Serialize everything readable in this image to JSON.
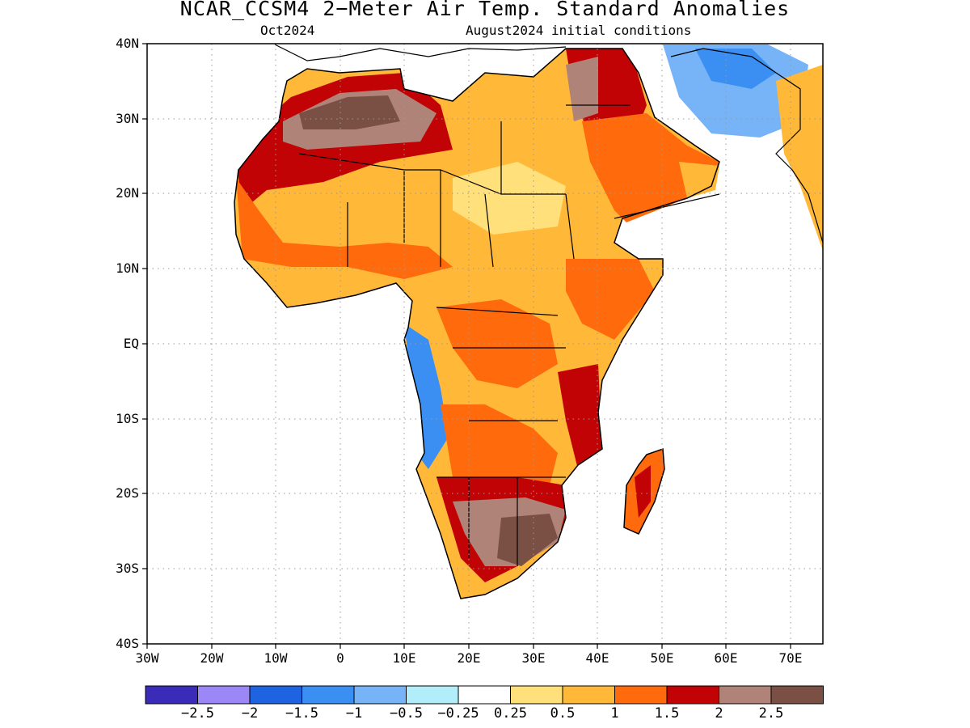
{
  "title": "NCAR_CCSM4 2−Meter Air Temp. Standard Anomalies",
  "subtitle_left": "Oct2024",
  "subtitle_right": "August2024 initial conditions",
  "lat_labels": [
    "40N",
    "30N",
    "20N",
    "10N",
    "EQ",
    "10S",
    "20S",
    "30S",
    "40S"
  ],
  "lon_labels": [
    "30W",
    "20W",
    "10W",
    "0",
    "10E",
    "20E",
    "30E",
    "40E",
    "50E",
    "60E",
    "70E"
  ],
  "colorbar": {
    "colors": [
      "#3a2bb8",
      "#9b87f5",
      "#1e63e0",
      "#3b8ff2",
      "#76b4f7",
      "#b2eefa",
      "#ffffff",
      "#ffe07a",
      "#ffb838",
      "#ff6a0d",
      "#c20306",
      "#b08378",
      "#7a5044"
    ],
    "labels": [
      "−2.5",
      "−2",
      "−1.5",
      "−1",
      "−0.5",
      "−0.25",
      "0.25",
      "0.5",
      "1",
      "1.5",
      "2",
      "2.5"
    ]
  },
  "map_extent": {
    "lon_range": [
      -30,
      75
    ],
    "lat_range": [
      -40,
      40
    ]
  }
}
